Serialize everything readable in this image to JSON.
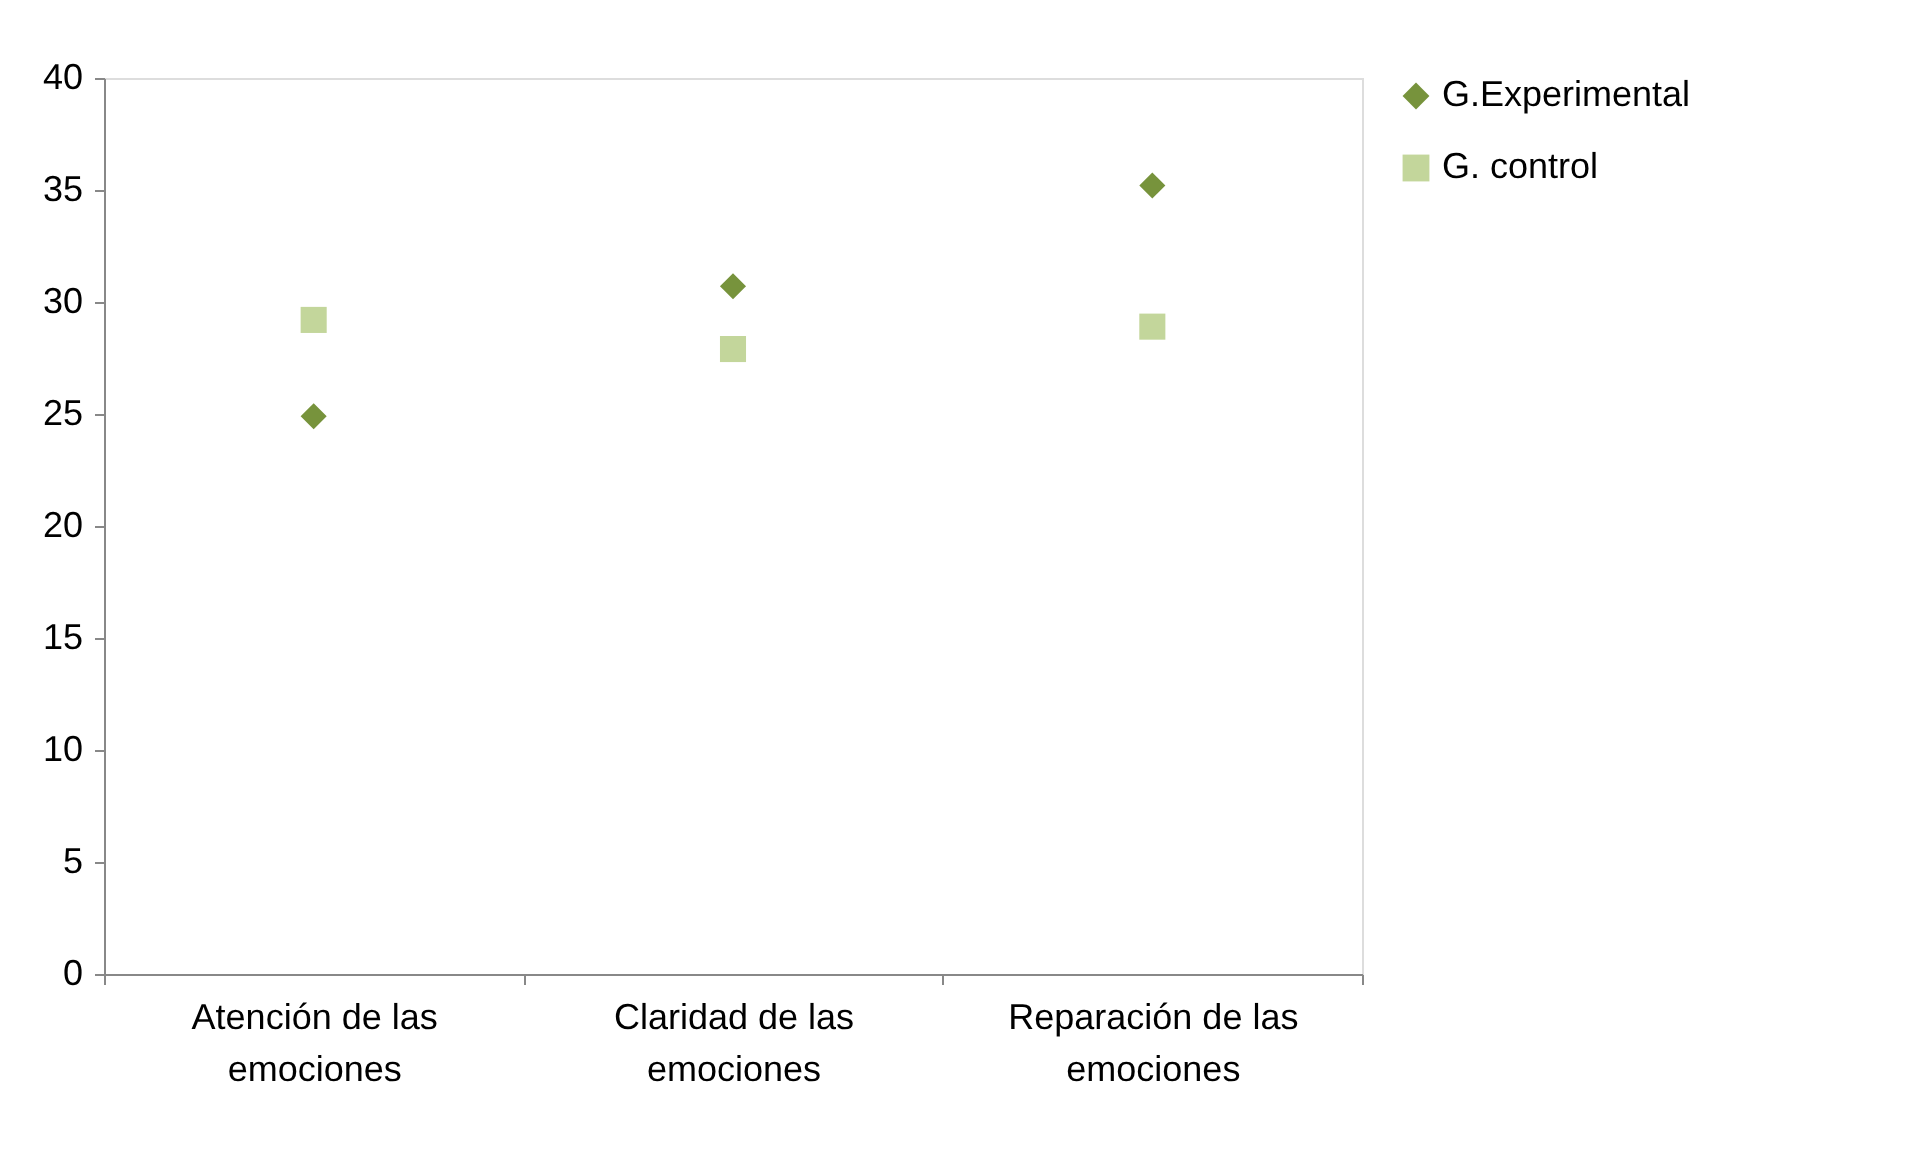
{
  "chart_data": {
    "type": "scatter",
    "categories": [
      "Atención de las emociones",
      "Claridad de las emociones",
      "Reparación de las emociones"
    ],
    "series": [
      {
        "name": "G.Experimental",
        "color": "#77933c",
        "marker": "diamond",
        "values": [
          24.9,
          30.7,
          35.2
        ]
      },
      {
        "name": "G. control",
        "color": "#c3d69b",
        "marker": "square",
        "values": [
          29.2,
          27.9,
          28.9
        ]
      }
    ],
    "ylim": [
      0,
      40
    ],
    "yticks": [
      0,
      5,
      10,
      15,
      20,
      25,
      30,
      35,
      40
    ],
    "grid": false,
    "legend": "right"
  }
}
